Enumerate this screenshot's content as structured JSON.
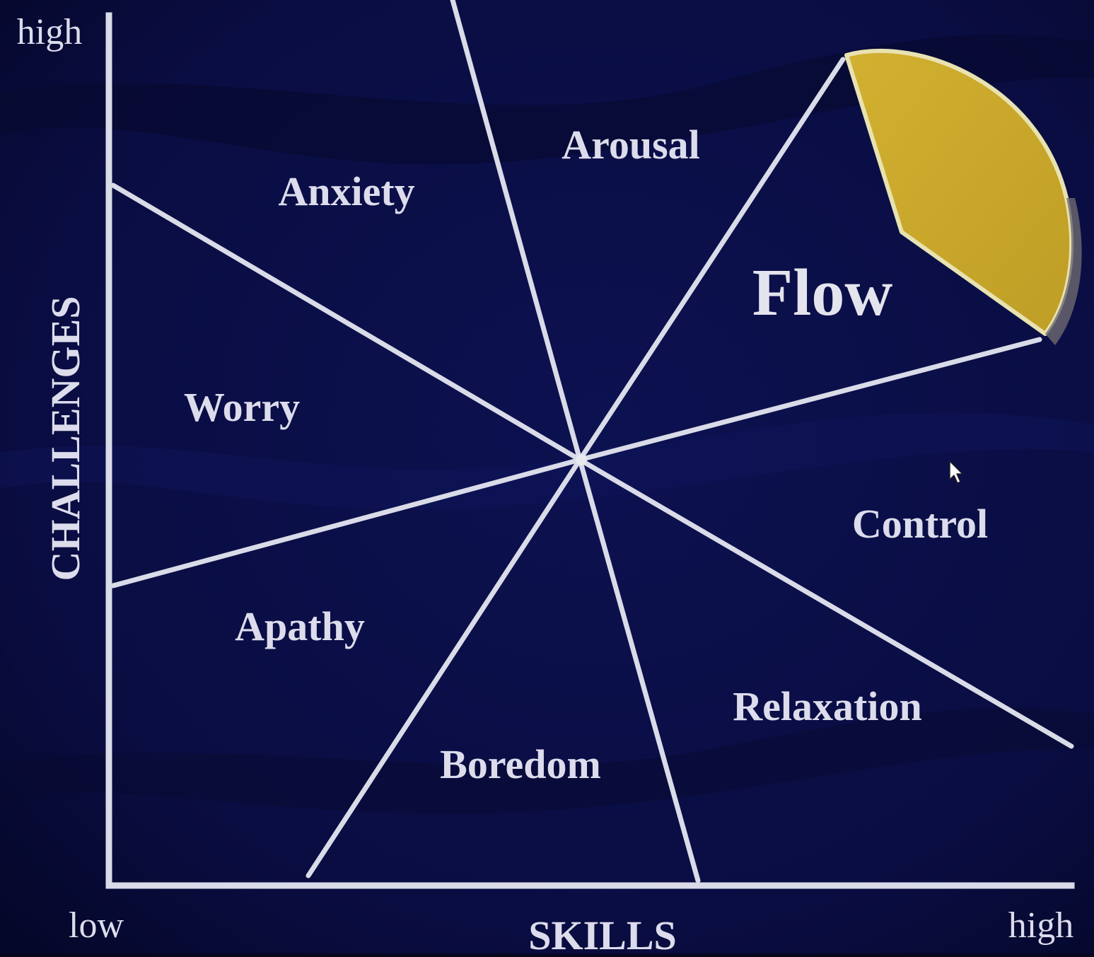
{
  "axes": {
    "y_title": "CHALLENGES",
    "y_high": "high",
    "x_title": "SKILLS",
    "x_low": "low",
    "x_high": "high"
  },
  "regions": {
    "anxiety": "Anxiety",
    "arousal": "Arousal",
    "flow": "Flow",
    "worry": "Worry",
    "control": "Control",
    "apathy": "Apathy",
    "relaxation": "Relaxation",
    "boredom": "Boredom"
  },
  "colors": {
    "background": "#0b0f4a",
    "lines": "#d9dbe8",
    "flow_highlight": "#c9a92c",
    "text": "#dcdcec"
  },
  "icons": {
    "cursor": "mouse-pointer-icon"
  }
}
